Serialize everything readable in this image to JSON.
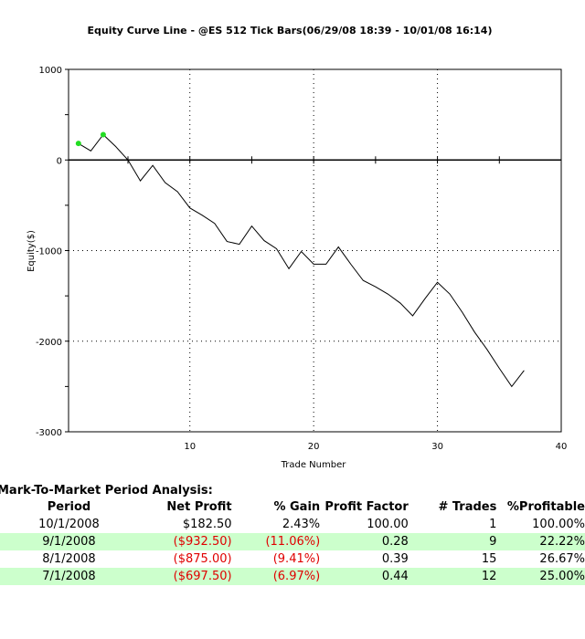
{
  "chart_data": {
    "type": "line",
    "title": "Equity Curve Line - @ES 512 Tick Bars(06/29/08 18:39 - 10/01/08 16:14)",
    "xlabel": "Trade Number",
    "ylabel": "Equity($)",
    "xlim": [
      0.2,
      40
    ],
    "ylim": [
      -3000,
      1000
    ],
    "xticks": [
      10,
      20,
      30,
      40
    ],
    "yticks": [
      1000,
      0,
      -1000,
      -2000,
      -3000
    ],
    "grid": "dotted",
    "x": [
      1,
      2,
      3,
      4,
      5,
      6,
      7,
      8,
      9,
      10,
      11,
      12,
      13,
      14,
      15,
      16,
      17,
      18,
      19,
      20,
      21,
      22,
      23,
      24,
      25,
      26,
      27,
      28,
      29,
      30,
      31,
      32,
      33,
      34,
      35,
      36,
      37
    ],
    "series": [
      {
        "name": "Equity",
        "color": "#000000",
        "values": [
          182.5,
          100,
          280,
          150,
          0,
          -230,
          -60,
          -250,
          -350,
          -530,
          -610,
          -700,
          -900,
          -930,
          -730,
          -890,
          -980,
          -1200,
          -1010,
          -1150,
          -1150,
          -960,
          -1150,
          -1330,
          -1400,
          -1480,
          -1580,
          -1720,
          -1530,
          -1350,
          -1480,
          -1680,
          -1900,
          -2090,
          -2300,
          -2500,
          -2322.5
        ]
      }
    ],
    "highlight_points": [
      {
        "x": 1,
        "y": 182.5,
        "color": "#22dd22"
      },
      {
        "x": 3,
        "y": 280,
        "color": "#22dd22"
      }
    ]
  },
  "table": {
    "title": "Mark-To-Market Period Analysis:",
    "headers": [
      "Period",
      "Net Profit",
      "% Gain",
      "Profit Factor",
      "# Trades",
      "%Profitable"
    ],
    "rows": [
      [
        "10/1/2008",
        "$182.50",
        "2.43%",
        "100.00",
        "1",
        "100.00%"
      ],
      [
        "9/1/2008",
        "($932.50)",
        "(11.06%)",
        "0.28",
        "9",
        "22.22%"
      ],
      [
        "8/1/2008",
        "($875.00)",
        "(9.41%)",
        "0.39",
        "15",
        "26.67%"
      ],
      [
        "7/1/2008",
        "($697.50)",
        "(6.97%)",
        "0.44",
        "12",
        "25.00%"
      ]
    ]
  }
}
